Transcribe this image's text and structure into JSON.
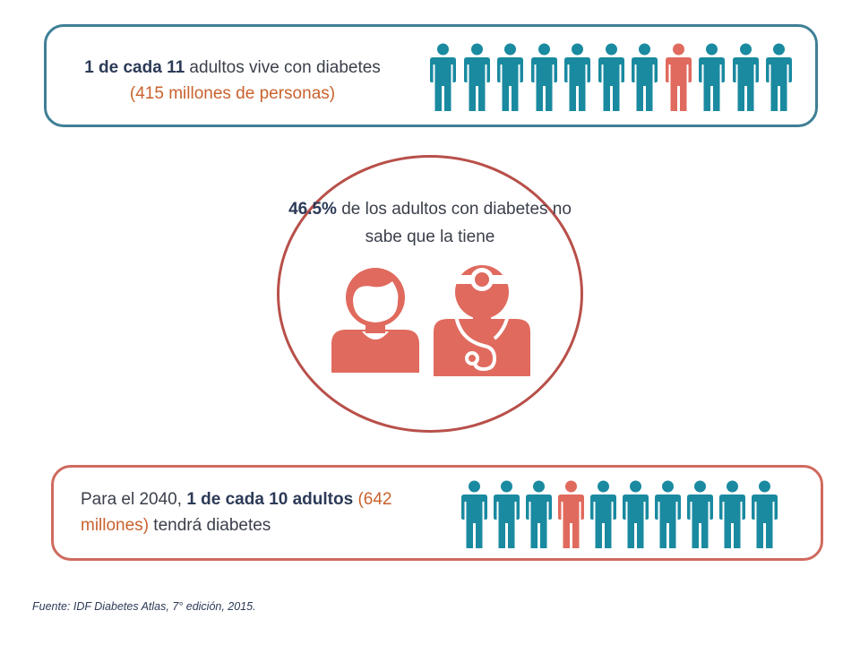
{
  "top_stat": {
    "strong": "1 de cada 11",
    "text": " adultos vive con diabetes",
    "highlight": "(415 millones de personas)",
    "icons": {
      "total": 11,
      "highlighted_index": 8,
      "icon": "person-icon"
    }
  },
  "middle_stat": {
    "strong": "46.5%",
    "text": " de los adultos con diabetes no sabe que la tiene",
    "icons": [
      "patient-icon",
      "doctor-icon"
    ]
  },
  "bottom_stat": {
    "prefix": "Para el 2040, ",
    "strong": "1 de cada 10 adultos",
    "highlight": " (642 millones)",
    "suffix": " tendrá diabetes",
    "icons": {
      "total": 10,
      "highlighted_index": 4,
      "icon": "person-icon"
    }
  },
  "source": "Fuente: IDF Diabetes Atlas, 7° edición, 2015.",
  "colors": {
    "teal": "#1a8aa0",
    "coral": "#e06a5e",
    "top_border": "#3f7f96",
    "bottom_border": "#cf6a5f",
    "circle_border": "#b8504a",
    "dark_text": "#2c3a57",
    "orange_text": "#c9622e"
  }
}
